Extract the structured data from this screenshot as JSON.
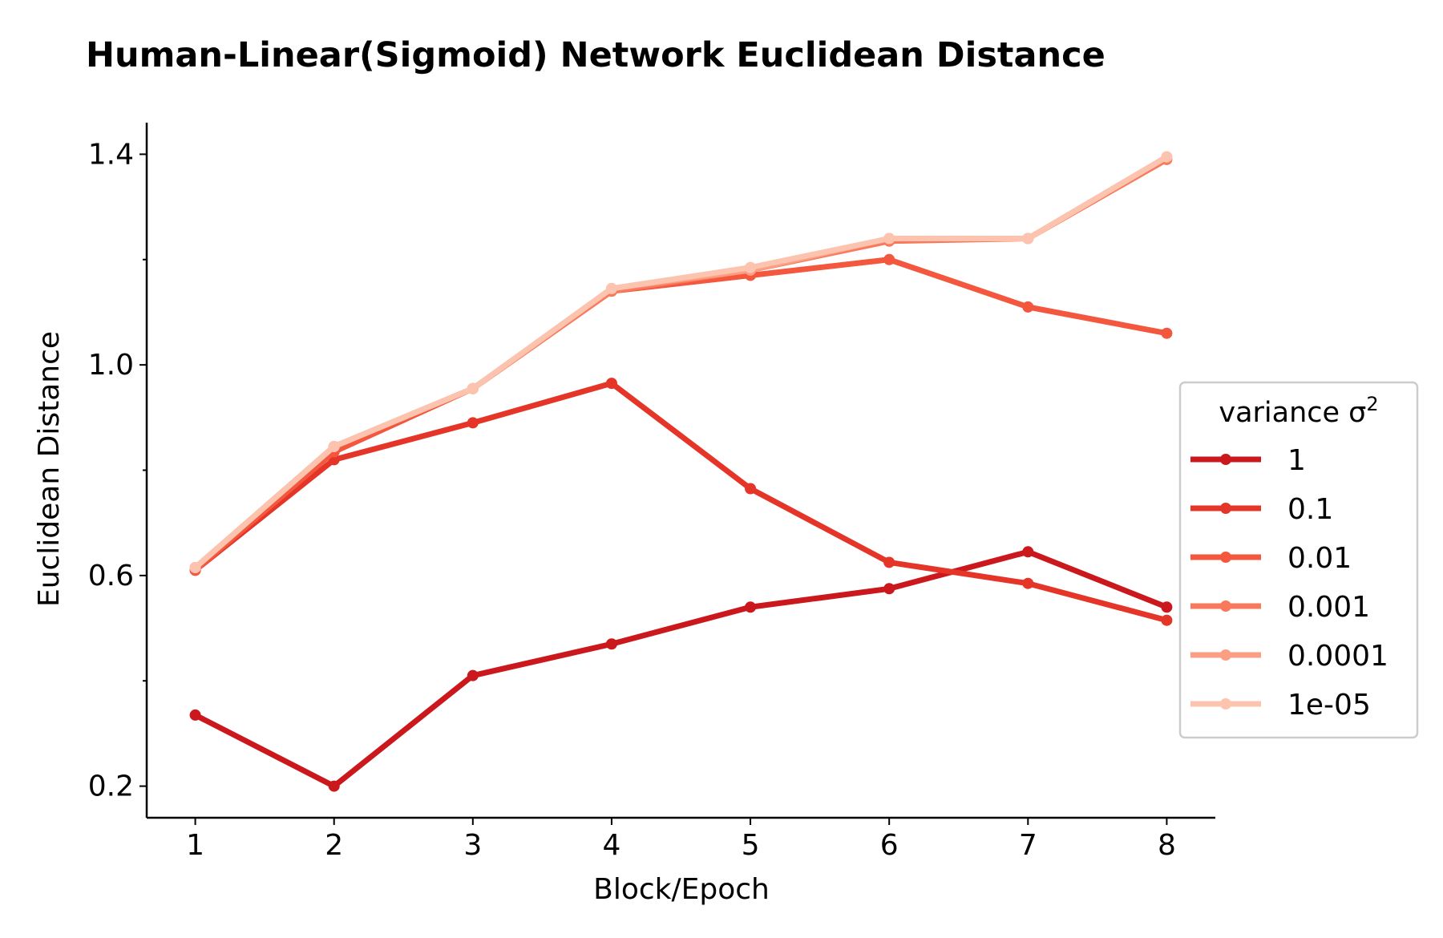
{
  "chart_data": {
    "type": "line",
    "title": "Human-Linear(Sigmoid) Network Euclidean Distance",
    "xlabel": "Block/Epoch",
    "ylabel": "Euclidean Distance",
    "x": [
      1,
      2,
      3,
      4,
      5,
      6,
      7,
      8
    ],
    "xticks": [
      "1",
      "2",
      "3",
      "4",
      "5",
      "6",
      "7",
      "8"
    ],
    "yticks": [
      "0.2",
      "0.6",
      "1.0",
      "1.4"
    ],
    "ylim": [
      0.14,
      1.46
    ],
    "xlim": [
      0.65,
      8.35
    ],
    "grid": false,
    "legend": {
      "title": "variance σ",
      "title_sup": "2",
      "placement": "right"
    },
    "series": [
      {
        "name": "1",
        "color": "#cb181d",
        "values": [
          0.335,
          0.2,
          0.41,
          0.47,
          0.54,
          0.575,
          0.645,
          0.54
        ]
      },
      {
        "name": "0.1",
        "color": "#e53428",
        "values": [
          0.61,
          0.82,
          0.89,
          0.965,
          0.765,
          0.625,
          0.585,
          0.515
        ]
      },
      {
        "name": "0.01",
        "color": "#f3573e",
        "values": [
          0.61,
          0.835,
          0.955,
          1.14,
          1.17,
          1.2,
          1.11,
          1.06
        ]
      },
      {
        "name": "0.001",
        "color": "#f9795c",
        "values": [
          0.615,
          0.845,
          0.955,
          1.14,
          1.18,
          1.235,
          1.24,
          1.39
        ]
      },
      {
        "name": "0.0001",
        "color": "#fb9f84",
        "values": [
          0.615,
          0.845,
          0.955,
          1.145,
          1.18,
          1.24,
          1.24,
          1.395
        ]
      },
      {
        "name": "1e-05",
        "color": "#fcc4af",
        "values": [
          0.615,
          0.845,
          0.955,
          1.145,
          1.185,
          1.24,
          1.24,
          1.395
        ]
      }
    ]
  }
}
